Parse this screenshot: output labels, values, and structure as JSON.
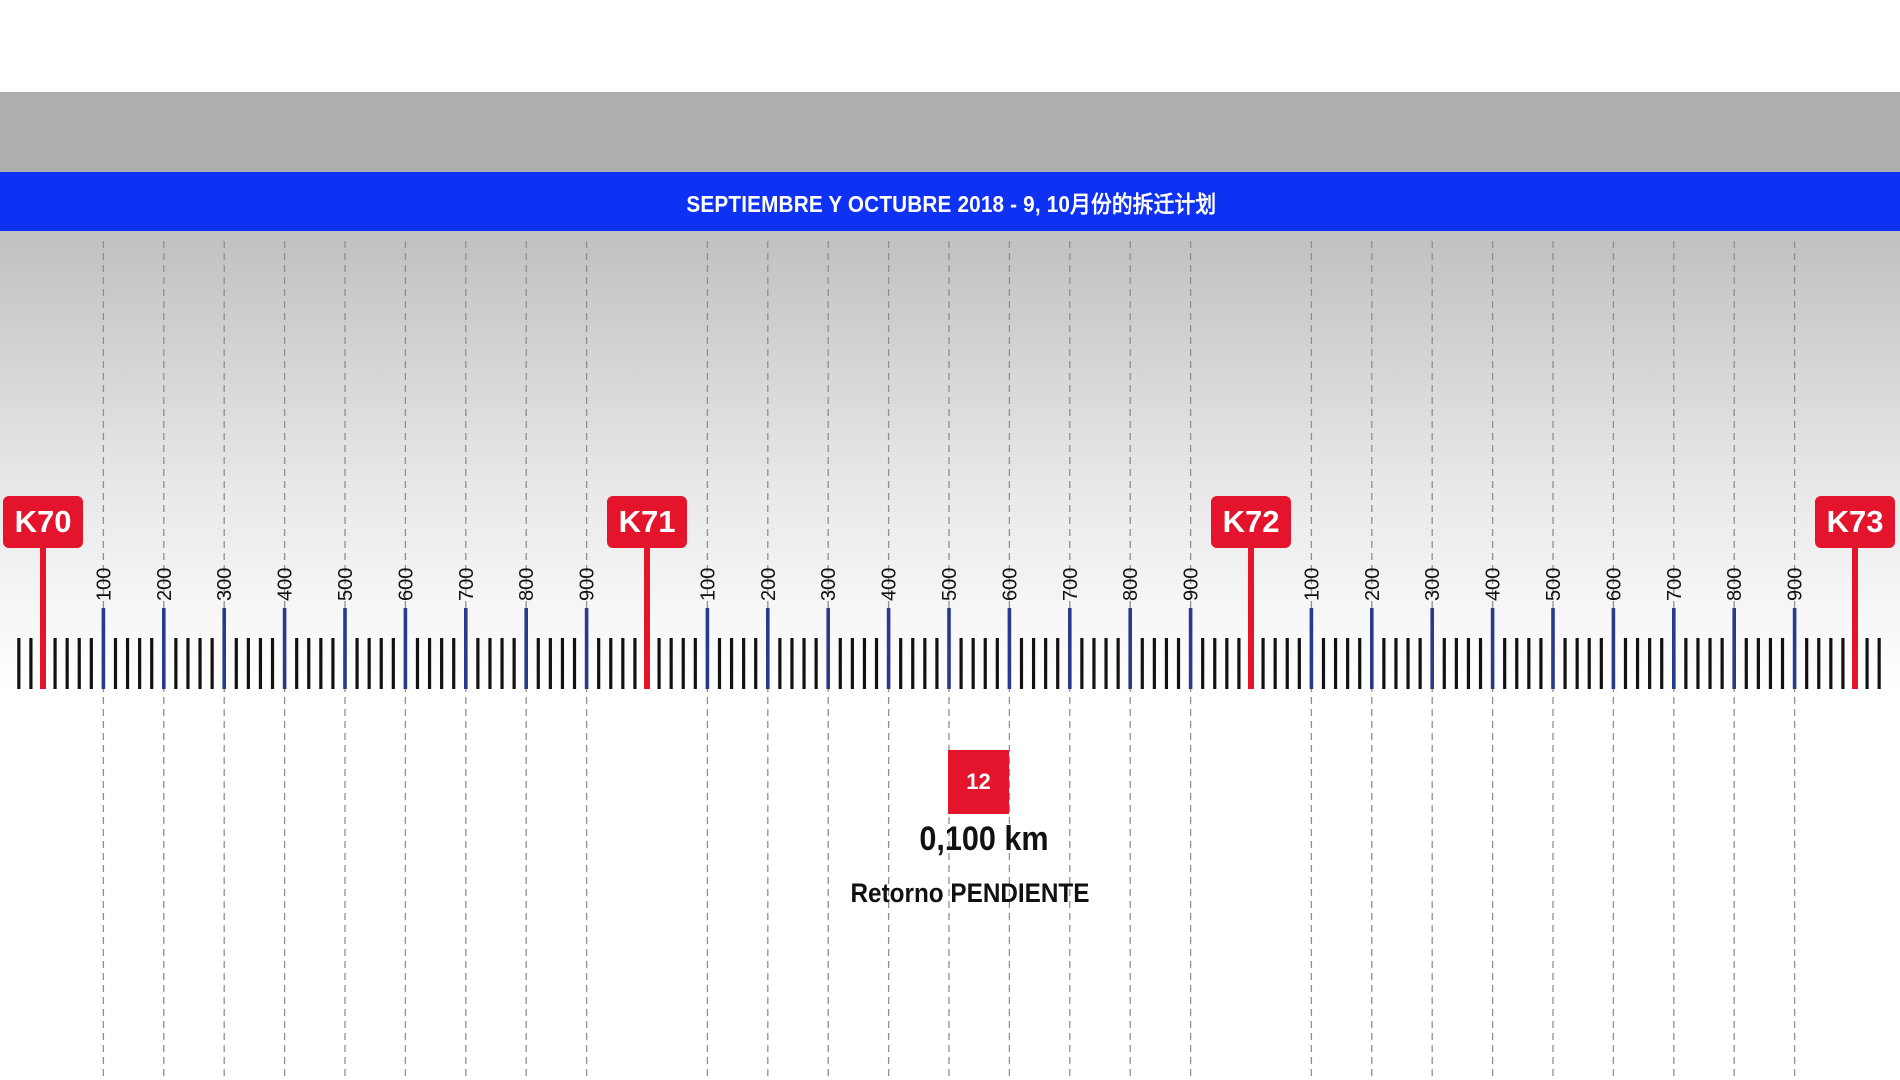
{
  "header": {
    "title": "SEPTIEMBRE Y OCTUBRE 2018 - 9, 10月份的拆迁计划"
  },
  "scale": {
    "markers": [
      "K70",
      "K71",
      "K72",
      "K73"
    ],
    "sub_labels": [
      "100",
      "200",
      "300",
      "400",
      "500",
      "600",
      "700",
      "800",
      "900"
    ],
    "marker_color": "#e3142c",
    "sub_tick_color": "#283a8c",
    "minor_tick_color": "#111111"
  },
  "item": {
    "number": "12",
    "distance": "0,100 km",
    "status": "Retorno PENDIENTE",
    "color": "#e3142c"
  }
}
